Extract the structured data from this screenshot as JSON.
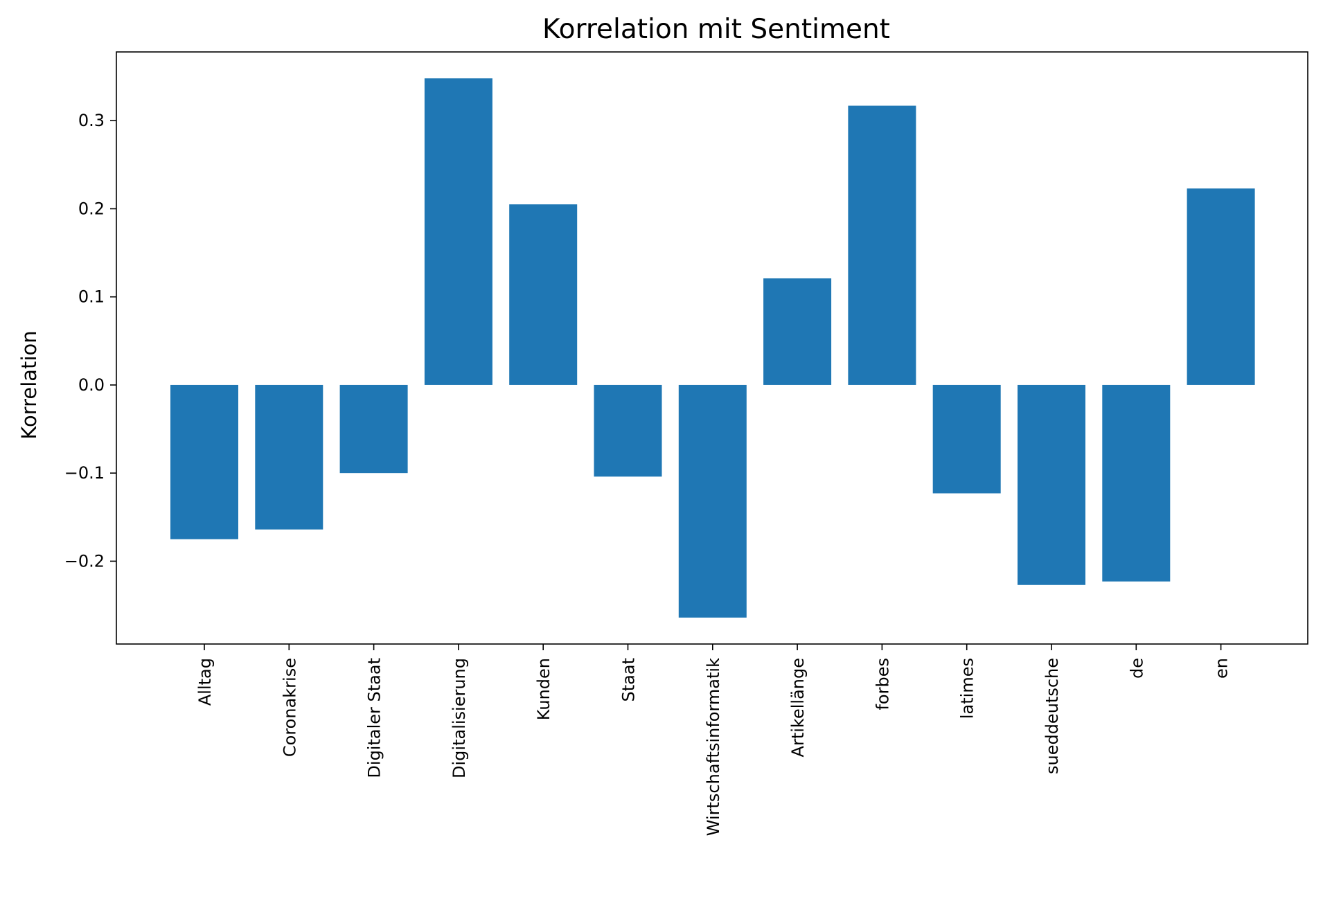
{
  "chart_data": {
    "type": "bar",
    "title": "Korrelation mit Sentiment",
    "xlabel": "",
    "ylabel": "Korrelation",
    "categories": [
      "Alltag",
      "Coronakrise",
      "Digitaler Staat",
      "Digitalisierung",
      "Kunden",
      "Staat",
      "Wirtschaftsinformatik",
      "Artikellänge",
      "forbes",
      "latimes",
      "sueddeutsche",
      "de",
      "en"
    ],
    "values": [
      -0.175,
      -0.164,
      -0.1,
      0.348,
      0.205,
      -0.104,
      -0.264,
      0.121,
      0.317,
      -0.123,
      -0.227,
      -0.223,
      0.223
    ],
    "yticks": [
      -0.2,
      -0.1,
      0.0,
      0.1,
      0.2,
      0.3
    ],
    "ytick_labels": [
      "−0.2",
      "−0.1",
      "0.0",
      "0.1",
      "0.2",
      "0.3"
    ],
    "ylim": [
      -0.294,
      0.378
    ],
    "bar_color": "#1f77b4",
    "grid": false,
    "legend": "none"
  }
}
